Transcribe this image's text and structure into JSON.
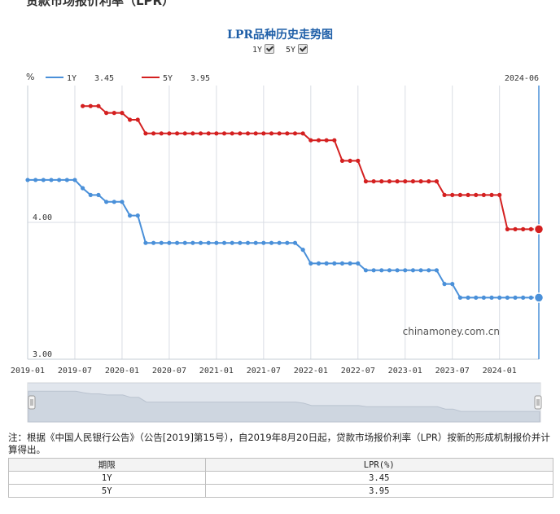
{
  "page_heading": "贷款市场报价利率（LPR）",
  "toggles": [
    {
      "label": "1Y",
      "checked": true
    },
    {
      "label": "5Y",
      "checked": true
    }
  ],
  "watermark": "chinamoney.com.cn",
  "note": "注：根据《中国人民银行公告》（公告[2019]第15号），自2019年8月20日起，贷款市场报价利率（LPR）按新的形成机制报价并计算得出。",
  "table": {
    "headers": [
      "期限",
      "LPR(%)"
    ],
    "rows": [
      [
        "1Y",
        "3.45"
      ],
      [
        "5Y",
        "3.95"
      ]
    ]
  },
  "colors": {
    "series_1y": "#4a90d9",
    "series_5y": "#d42020",
    "title": "#1f5fa8"
  },
  "chart_data": {
    "type": "line",
    "title": "LPR品种历史走势图",
    "ylabel": "%",
    "current_label": "2024-06",
    "ylim": [
      3.0,
      5.0
    ],
    "y_ticks": [
      3.0,
      4.0
    ],
    "y_tick_labels": [
      "3.00",
      "4.00"
    ],
    "x_range": [
      "2019-01",
      "2024-06"
    ],
    "x_ticks": [
      "2019-01",
      "2019-07",
      "2020-01",
      "2020-07",
      "2021-01",
      "2021-07",
      "2022-01",
      "2022-07",
      "2023-01",
      "2023-07",
      "2024-01"
    ],
    "grid": true,
    "legend": "top-left",
    "series": [
      {
        "name": "1Y",
        "legend_value": "3.45",
        "points": [
          [
            "2019-01",
            4.31
          ],
          [
            "2019-02",
            4.31
          ],
          [
            "2019-03",
            4.31
          ],
          [
            "2019-04",
            4.31
          ],
          [
            "2019-05",
            4.31
          ],
          [
            "2019-06",
            4.31
          ],
          [
            "2019-07",
            4.31
          ],
          [
            "2019-08",
            4.25
          ],
          [
            "2019-09",
            4.2
          ],
          [
            "2019-10",
            4.2
          ],
          [
            "2019-11",
            4.15
          ],
          [
            "2019-12",
            4.15
          ],
          [
            "2020-01",
            4.15
          ],
          [
            "2020-02",
            4.05
          ],
          [
            "2020-03",
            4.05
          ],
          [
            "2020-04",
            3.85
          ],
          [
            "2020-05",
            3.85
          ],
          [
            "2020-06",
            3.85
          ],
          [
            "2020-07",
            3.85
          ],
          [
            "2020-08",
            3.85
          ],
          [
            "2020-09",
            3.85
          ],
          [
            "2020-10",
            3.85
          ],
          [
            "2020-11",
            3.85
          ],
          [
            "2020-12",
            3.85
          ],
          [
            "2021-01",
            3.85
          ],
          [
            "2021-02",
            3.85
          ],
          [
            "2021-03",
            3.85
          ],
          [
            "2021-04",
            3.85
          ],
          [
            "2021-05",
            3.85
          ],
          [
            "2021-06",
            3.85
          ],
          [
            "2021-07",
            3.85
          ],
          [
            "2021-08",
            3.85
          ],
          [
            "2021-09",
            3.85
          ],
          [
            "2021-10",
            3.85
          ],
          [
            "2021-11",
            3.85
          ],
          [
            "2021-12",
            3.8
          ],
          [
            "2022-01",
            3.7
          ],
          [
            "2022-02",
            3.7
          ],
          [
            "2022-03",
            3.7
          ],
          [
            "2022-04",
            3.7
          ],
          [
            "2022-05",
            3.7
          ],
          [
            "2022-06",
            3.7
          ],
          [
            "2022-07",
            3.7
          ],
          [
            "2022-08",
            3.65
          ],
          [
            "2022-09",
            3.65
          ],
          [
            "2022-10",
            3.65
          ],
          [
            "2022-11",
            3.65
          ],
          [
            "2022-12",
            3.65
          ],
          [
            "2023-01",
            3.65
          ],
          [
            "2023-02",
            3.65
          ],
          [
            "2023-03",
            3.65
          ],
          [
            "2023-04",
            3.65
          ],
          [
            "2023-05",
            3.65
          ],
          [
            "2023-06",
            3.55
          ],
          [
            "2023-07",
            3.55
          ],
          [
            "2023-08",
            3.45
          ],
          [
            "2023-09",
            3.45
          ],
          [
            "2023-10",
            3.45
          ],
          [
            "2023-11",
            3.45
          ],
          [
            "2023-12",
            3.45
          ],
          [
            "2024-01",
            3.45
          ],
          [
            "2024-02",
            3.45
          ],
          [
            "2024-03",
            3.45
          ],
          [
            "2024-04",
            3.45
          ],
          [
            "2024-05",
            3.45
          ],
          [
            "2024-06",
            3.45
          ]
        ]
      },
      {
        "name": "5Y",
        "legend_value": "3.95",
        "points": [
          [
            "2019-08",
            4.85
          ],
          [
            "2019-09",
            4.85
          ],
          [
            "2019-10",
            4.85
          ],
          [
            "2019-11",
            4.8
          ],
          [
            "2019-12",
            4.8
          ],
          [
            "2020-01",
            4.8
          ],
          [
            "2020-02",
            4.75
          ],
          [
            "2020-03",
            4.75
          ],
          [
            "2020-04",
            4.65
          ],
          [
            "2020-05",
            4.65
          ],
          [
            "2020-06",
            4.65
          ],
          [
            "2020-07",
            4.65
          ],
          [
            "2020-08",
            4.65
          ],
          [
            "2020-09",
            4.65
          ],
          [
            "2020-10",
            4.65
          ],
          [
            "2020-11",
            4.65
          ],
          [
            "2020-12",
            4.65
          ],
          [
            "2021-01",
            4.65
          ],
          [
            "2021-02",
            4.65
          ],
          [
            "2021-03",
            4.65
          ],
          [
            "2021-04",
            4.65
          ],
          [
            "2021-05",
            4.65
          ],
          [
            "2021-06",
            4.65
          ],
          [
            "2021-07",
            4.65
          ],
          [
            "2021-08",
            4.65
          ],
          [
            "2021-09",
            4.65
          ],
          [
            "2021-10",
            4.65
          ],
          [
            "2021-11",
            4.65
          ],
          [
            "2021-12",
            4.65
          ],
          [
            "2022-01",
            4.6
          ],
          [
            "2022-02",
            4.6
          ],
          [
            "2022-03",
            4.6
          ],
          [
            "2022-04",
            4.6
          ],
          [
            "2022-05",
            4.45
          ],
          [
            "2022-06",
            4.45
          ],
          [
            "2022-07",
            4.45
          ],
          [
            "2022-08",
            4.3
          ],
          [
            "2022-09",
            4.3
          ],
          [
            "2022-10",
            4.3
          ],
          [
            "2022-11",
            4.3
          ],
          [
            "2022-12",
            4.3
          ],
          [
            "2023-01",
            4.3
          ],
          [
            "2023-02",
            4.3
          ],
          [
            "2023-03",
            4.3
          ],
          [
            "2023-04",
            4.3
          ],
          [
            "2023-05",
            4.3
          ],
          [
            "2023-06",
            4.2
          ],
          [
            "2023-07",
            4.2
          ],
          [
            "2023-08",
            4.2
          ],
          [
            "2023-09",
            4.2
          ],
          [
            "2023-10",
            4.2
          ],
          [
            "2023-11",
            4.2
          ],
          [
            "2023-12",
            4.2
          ],
          [
            "2024-01",
            4.2
          ],
          [
            "2024-02",
            3.95
          ],
          [
            "2024-03",
            3.95
          ],
          [
            "2024-04",
            3.95
          ],
          [
            "2024-05",
            3.95
          ],
          [
            "2024-06",
            3.95
          ]
        ]
      }
    ]
  }
}
